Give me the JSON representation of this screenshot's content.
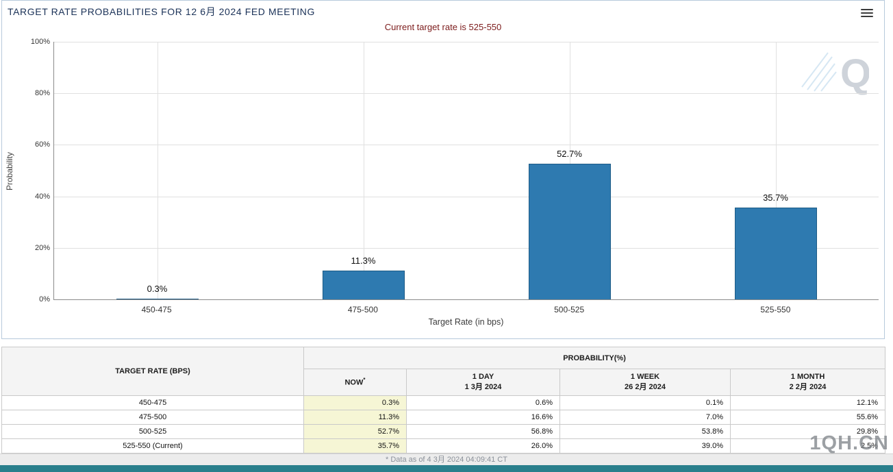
{
  "header": {
    "title": "TARGET RATE PROBABILITIES FOR 12 6月 2024 FED MEETING",
    "subtitle": "Current target rate is 525-550"
  },
  "chart_data": {
    "type": "bar",
    "title": "Current target rate is 525-550",
    "categories": [
      "450-475",
      "475-500",
      "500-525",
      "525-550"
    ],
    "values": [
      0.3,
      11.3,
      52.7,
      35.7
    ],
    "labels": [
      "0.3%",
      "11.3%",
      "52.7%",
      "35.7%"
    ],
    "xlabel": "Target Rate (in bps)",
    "ylabel": "Probability",
    "ylim": [
      0,
      100
    ],
    "ytick_step": 20,
    "ytick_suffix": "%",
    "grid": true,
    "legend": "none",
    "bar_color": "#2e7ab0",
    "bar_border_color": "#1d5b86"
  },
  "table": {
    "target_rate_header": "TARGET RATE (BPS)",
    "probability_header": "PROBABILITY(%)",
    "now_header": {
      "label": "NOW",
      "sup": "*"
    },
    "period_headers": [
      {
        "label": "1 DAY",
        "date": "1 3月 2024"
      },
      {
        "label": "1 WEEK",
        "date": "26 2月 2024"
      },
      {
        "label": "1 MONTH",
        "date": "2 2月 2024"
      }
    ],
    "rows": [
      {
        "rate": "450-475",
        "now": "0.3%",
        "day": "0.6%",
        "week": "0.1%",
        "month": "12.1%"
      },
      {
        "rate": "475-500",
        "now": "11.3%",
        "day": "16.6%",
        "week": "7.0%",
        "month": "55.6%"
      },
      {
        "rate": "500-525",
        "now": "52.7%",
        "day": "56.8%",
        "week": "53.8%",
        "month": "29.8%"
      },
      {
        "rate": "525-550 (Current)",
        "now": "35.7%",
        "day": "26.0%",
        "week": "39.0%",
        "month": "2.5%"
      }
    ],
    "footnote": "* Data as of 4 3月 2024 04:09:41 CT"
  },
  "watermarks": {
    "chart_logo": "Q",
    "site": "1QH.CN"
  },
  "colors": {
    "title_text": "#1a3157",
    "subtitle_text": "#7b1a1a",
    "bar_fill": "#2e7ab0",
    "bar_border": "#1d5b86",
    "now_column_bg": "#f6f6d5",
    "header_bg": "#f4f4f4",
    "footnote_bg": "#ececec",
    "bottom_bar": "#2a7f8c"
  }
}
